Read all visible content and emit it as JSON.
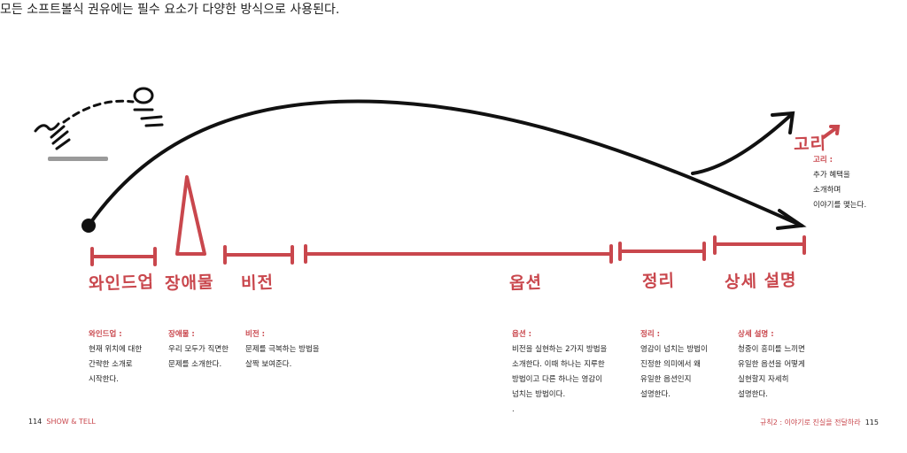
{
  "headline": "모든 소프트볼식 권유에는 필수 요소가 다양한 방식으로 사용된다.",
  "accent_color": "#c9474d",
  "stages": [
    {
      "label": "와인드업",
      "title": "와인드업 :",
      "lines": [
        "현재 위치에 대한",
        "간략한 소개로",
        "시작한다."
      ]
    },
    {
      "label": "장애물",
      "title": "장애물 :",
      "lines": [
        "우리 모두가 직면한",
        "문제를 소개한다."
      ]
    },
    {
      "label": "비전",
      "title": "비전 :",
      "lines": [
        "문제를 극복하는 방법을",
        "살짝 보여준다."
      ]
    },
    {
      "label": "옵션",
      "title": "옵션 :",
      "lines": [
        "비전을 실현하는 2가지 방법을",
        "소개한다. 이때 하나는 지루한",
        "방법이고 다른 하나는 영감이",
        "넘치는 방법이다.",
        "."
      ]
    },
    {
      "label": "정리",
      "title": "정리 :",
      "lines": [
        "영감이 넘치는 방법이",
        "진정한 의미에서 왜",
        "유일한 옵션인지",
        "설명한다."
      ]
    },
    {
      "label": "상세 설명",
      "title": "상세 설명 :",
      "lines": [
        "청중이 흥미를 느끼면",
        "유일한 옵션을 어떻게",
        "실현할지 자세히",
        "설명한다."
      ]
    },
    {
      "label": "고리",
      "title": "고리 :",
      "lines": [
        "추가 혜택을",
        "소개하며",
        "이야기를 맺는다."
      ]
    }
  ],
  "footer": {
    "left_page": "114",
    "left_title": "SHOW & TELL",
    "right_title": "규칙2 : 이야기로 진실을 전달하라",
    "right_page": "115"
  }
}
